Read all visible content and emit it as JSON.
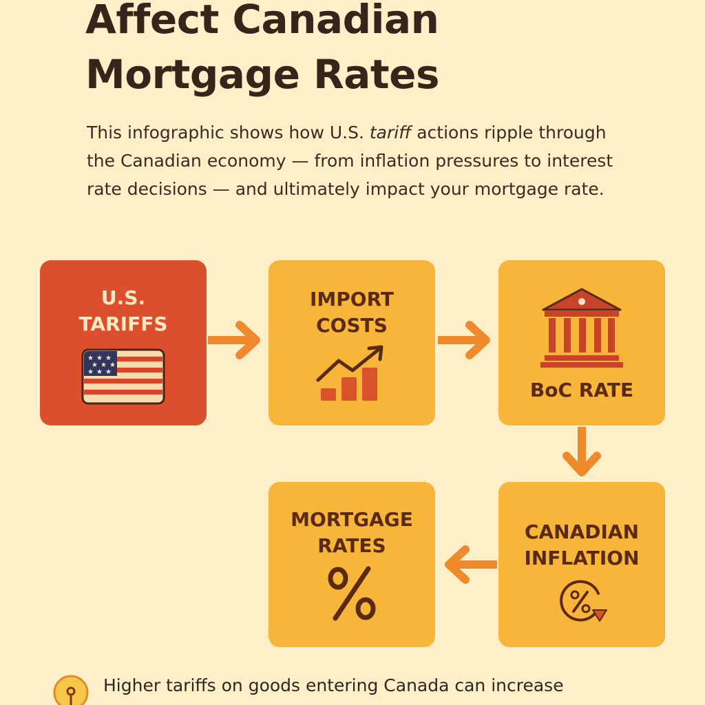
{
  "title": {
    "line1": "Affect Canadian",
    "line2": "Mortgage Rates"
  },
  "intro": {
    "before": "This infographic shows how U.S. ",
    "emphasis": "tariff",
    "after": " actions ripple through the Canadian economy — from inflation pressures to interest rate decisions — and ultimately impact your mortgage rate."
  },
  "flow": {
    "us_tariffs": {
      "line1": "U.S.",
      "line2": "TARIFFS",
      "icon": "us-flag-icon"
    },
    "import_costs": {
      "line1": "IMPORT",
      "line2": "COSTS",
      "icon": "rising-bar-chart-icon"
    },
    "boc_rate": {
      "line1": "BoC RATE",
      "icon": "bank-building-icon"
    },
    "canadian_inflation": {
      "line1": "CANADIAN",
      "line2": "INFLATION",
      "icon": "percent-cycle-icon"
    },
    "mortgage_rates": {
      "line1": "MORTGAGE",
      "line2": "RATES",
      "icon": "percent-icon"
    }
  },
  "note": {
    "text": "Higher tariffs on goods entering Canada can increase",
    "icon": "lightbulb-icon"
  },
  "colors": {
    "background": "#fdf0c9",
    "red_box": "#dc4f2c",
    "orange_box": "#f7b53a",
    "arrow": "#ef8a2c",
    "icon_red": "#cf4226"
  }
}
